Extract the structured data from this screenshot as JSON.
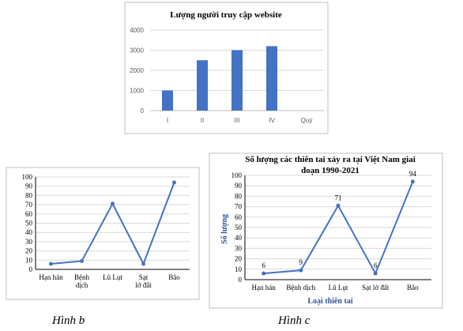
{
  "chart_data": [
    {
      "type": "bar",
      "title": "Lượng người truy cập website",
      "categories": [
        "I",
        "II",
        "III",
        "IV",
        "Quý"
      ],
      "values": [
        1000,
        2500,
        3000,
        3200,
        null
      ],
      "yticks": [
        0,
        1000,
        2000,
        3000,
        4000
      ],
      "ylim": [
        0,
        4000
      ],
      "grid": true,
      "color": "#4472c4"
    },
    {
      "type": "line",
      "title": "",
      "categories": [
        "Hạn hán",
        "Bệnh dịch",
        "Lũ Lụt",
        "Sạt lở đất",
        "Bão"
      ],
      "values": [
        6,
        9,
        71,
        6,
        94
      ],
      "yticks": [
        0,
        10,
        20,
        30,
        40,
        50,
        60,
        70,
        80,
        90,
        100
      ],
      "ylim": [
        0,
        100
      ],
      "grid": true,
      "color": "#4472c4"
    },
    {
      "type": "line",
      "title": "Số lượng các thiên tai xảy ra tại Việt Nam giai đoạn 1990-2021",
      "title_lines": [
        "Số lượng các thiên tai xảy ra tại Việt Nam giai",
        "đoạn 1990-2021"
      ],
      "categories": [
        "Hạn hán",
        "Bệnh dịch",
        "Lũ Lụt",
        "Sạt lở đất",
        "Bão"
      ],
      "values": [
        6,
        9,
        71,
        6,
        94
      ],
      "data_labels": [
        "6",
        "9",
        "71",
        "6",
        "94"
      ],
      "yticks": [
        0,
        10,
        20,
        30,
        40,
        50,
        60,
        70,
        80,
        90,
        100
      ],
      "ylim": [
        0,
        100
      ],
      "xlabel": "Loại thiên tai",
      "ylabel": "Số lượng",
      "grid": true,
      "color": "#4472c4"
    }
  ],
  "captions": {
    "b": "Hình b",
    "c": "Hình c"
  }
}
